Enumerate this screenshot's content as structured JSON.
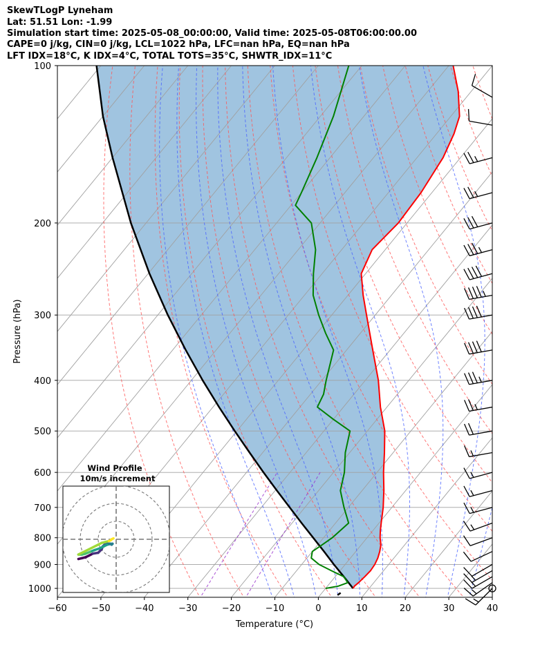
{
  "header": {
    "line1": "SkewTLogP Lyneham",
    "line2": "Lat: 51.51   Lon: -1.99",
    "line3": "Simulation start time: 2025-05-08_00:00:00, Valid time: 2025-05-08T06:00:00.00",
    "line4": "CAPE=0 j/kg, CIN=0 j/kg, LCL=1022 hPa, LFC=nan hPa, EQ=nan hPa",
    "line5": "LFT IDX=18°C, K IDX=4°C, TOTAL TOTS=35°C, SHWTR_IDX=11°C"
  },
  "chart_data": {
    "type": "skewt-logp",
    "xlabel": "Temperature (°C)",
    "ylabel": "Pressure (hPa)",
    "xlim": [
      -60,
      40
    ],
    "ylim": [
      1040,
      100
    ],
    "x_ticks": [
      -60,
      -50,
      -40,
      -30,
      -20,
      -10,
      0,
      10,
      20,
      30,
      40
    ],
    "x_tick_labels": [
      "−60",
      "−50",
      "−40",
      "−30",
      "−20",
      "−10",
      "0",
      "10",
      "20",
      "30",
      "40"
    ],
    "y_ticks": [
      1000,
      900,
      800,
      700,
      600,
      500,
      400,
      300,
      200,
      100
    ],
    "y_tick_labels": [
      "1000",
      "900",
      "800",
      "700",
      "600",
      "500",
      "400",
      "300",
      "200",
      "100"
    ],
    "grid": true,
    "colors": {
      "temperature": "#ff0000",
      "dewpoint": "#008000",
      "parcel": "#000000",
      "shading": "#a0c4e0",
      "dry_adiabats": "#ff5555",
      "moist_adiabats": "#4a63ff",
      "mixing_ratio": "#9933cc",
      "isotherms": "#a0a0a0"
    },
    "temperature": [
      {
        "p": 1000,
        "t": 6.3
      },
      {
        "p": 990,
        "t": 6.2
      },
      {
        "p": 975,
        "t": 6.5
      },
      {
        "p": 950,
        "t": 6.8
      },
      {
        "p": 925,
        "t": 7.0
      },
      {
        "p": 900,
        "t": 6.8
      },
      {
        "p": 875,
        "t": 6.3
      },
      {
        "p": 850,
        "t": 5.5
      },
      {
        "p": 825,
        "t": 4.5
      },
      {
        "p": 800,
        "t": 3.0
      },
      {
        "p": 775,
        "t": 1.7
      },
      {
        "p": 750,
        "t": 0.5
      },
      {
        "p": 700,
        "t": -2.0
      },
      {
        "p": 650,
        "t": -5.0
      },
      {
        "p": 600,
        "t": -8.5
      },
      {
        "p": 550,
        "t": -12.0
      },
      {
        "p": 500,
        "t": -16.0
      },
      {
        "p": 450,
        "t": -21.5
      },
      {
        "p": 400,
        "t": -27.0
      },
      {
        "p": 350,
        "t": -34.0
      },
      {
        "p": 300,
        "t": -42.0
      },
      {
        "p": 275,
        "t": -46.5
      },
      {
        "p": 250,
        "t": -51.0
      },
      {
        "p": 225,
        "t": -53.0
      },
      {
        "p": 200,
        "t": -52.0
      },
      {
        "p": 175,
        "t": -52.5
      },
      {
        "p": 150,
        "t": -54.0
      },
      {
        "p": 135,
        "t": -56.0
      },
      {
        "p": 125,
        "t": -58.0
      },
      {
        "p": 112,
        "t": -63.0
      },
      {
        "p": 100,
        "t": -69.0
      }
    ],
    "dewpoint": [
      {
        "p": 1000,
        "t": 0.0
      },
      {
        "p": 990,
        "t": 2.5
      },
      {
        "p": 975,
        "t": 4.0
      },
      {
        "p": 950,
        "t": 2.0
      },
      {
        "p": 925,
        "t": -2.0
      },
      {
        "p": 900,
        "t": -6.0
      },
      {
        "p": 875,
        "t": -9.0
      },
      {
        "p": 850,
        "t": -10.0
      },
      {
        "p": 825,
        "t": -9.0
      },
      {
        "p": 800,
        "t": -8.0
      },
      {
        "p": 750,
        "t": -7.0
      },
      {
        "p": 700,
        "t": -11.0
      },
      {
        "p": 650,
        "t": -15.0
      },
      {
        "p": 600,
        "t": -17.5
      },
      {
        "p": 550,
        "t": -21.0
      },
      {
        "p": 500,
        "t": -24.0
      },
      {
        "p": 475,
        "t": -30.0
      },
      {
        "p": 450,
        "t": -36.0
      },
      {
        "p": 425,
        "t": -37.0
      },
      {
        "p": 400,
        "t": -39.0
      },
      {
        "p": 350,
        "t": -43.0
      },
      {
        "p": 325,
        "t": -48.0
      },
      {
        "p": 300,
        "t": -53.0
      },
      {
        "p": 275,
        "t": -58.0
      },
      {
        "p": 250,
        "t": -62.0
      },
      {
        "p": 225,
        "t": -66.0
      },
      {
        "p": 200,
        "t": -72.0
      },
      {
        "p": 185,
        "t": -79.0
      },
      {
        "p": 175,
        "t": -80.0
      },
      {
        "p": 150,
        "t": -83.0
      },
      {
        "p": 125,
        "t": -87.0
      },
      {
        "p": 100,
        "t": -93.0
      }
    ],
    "parcel": [
      {
        "p": 1000,
        "t": 6.3
      },
      {
        "p": 950,
        "t": 2.0
      },
      {
        "p": 900,
        "t": -2.6
      },
      {
        "p": 850,
        "t": -7.3
      },
      {
        "p": 800,
        "t": -12.4
      },
      {
        "p": 750,
        "t": -17.8
      },
      {
        "p": 700,
        "t": -23.5
      },
      {
        "p": 650,
        "t": -29.6
      },
      {
        "p": 600,
        "t": -36.1
      },
      {
        "p": 550,
        "t": -43.0
      },
      {
        "p": 500,
        "t": -50.5
      },
      {
        "p": 450,
        "t": -58.6
      },
      {
        "p": 400,
        "t": -67.4
      },
      {
        "p": 350,
        "t": -77.0
      },
      {
        "p": 300,
        "t": -87.7
      },
      {
        "p": 250,
        "t": -99.7
      },
      {
        "p": 200,
        "t": -113.5
      },
      {
        "p": 150,
        "t": -130.0
      },
      {
        "p": 125,
        "t": -140.0
      },
      {
        "p": 100,
        "t": -151.0
      }
    ],
    "wind_barbs": [
      {
        "p": 1000,
        "speed_kt": 15,
        "dir": 225
      },
      {
        "p": 975,
        "speed_kt": 15,
        "dir": 235
      },
      {
        "p": 950,
        "speed_kt": 15,
        "dir": 240
      },
      {
        "p": 925,
        "speed_kt": 15,
        "dir": 240
      },
      {
        "p": 900,
        "speed_kt": 10,
        "dir": 240
      },
      {
        "p": 850,
        "speed_kt": 10,
        "dir": 245
      },
      {
        "p": 800,
        "speed_kt": 10,
        "dir": 250
      },
      {
        "p": 750,
        "speed_kt": 15,
        "dir": 250
      },
      {
        "p": 700,
        "speed_kt": 15,
        "dir": 255
      },
      {
        "p": 650,
        "speed_kt": 15,
        "dir": 255
      },
      {
        "p": 600,
        "speed_kt": 15,
        "dir": 255
      },
      {
        "p": 550,
        "speed_kt": 15,
        "dir": 260
      },
      {
        "p": 500,
        "speed_kt": 20,
        "dir": 260
      },
      {
        "p": 450,
        "speed_kt": 25,
        "dir": 260
      },
      {
        "p": 400,
        "speed_kt": 35,
        "dir": 260
      },
      {
        "p": 350,
        "speed_kt": 40,
        "dir": 260
      },
      {
        "p": 300,
        "speed_kt": 40,
        "dir": 260
      },
      {
        "p": 275,
        "speed_kt": 45,
        "dir": 260
      },
      {
        "p": 250,
        "speed_kt": 40,
        "dir": 255
      },
      {
        "p": 225,
        "speed_kt": 35,
        "dir": 255
      },
      {
        "p": 200,
        "speed_kt": 30,
        "dir": 255
      },
      {
        "p": 175,
        "speed_kt": 25,
        "dir": 255
      },
      {
        "p": 150,
        "speed_kt": 25,
        "dir": 255
      },
      {
        "p": 130,
        "speed_kt": 10,
        "dir": 280
      },
      {
        "p": 115,
        "speed_kt": 10,
        "dir": 300
      }
    ],
    "hodograph": {
      "title": "Wind Profile",
      "subtitle": "10m/s increment",
      "ring_increment_ms": 10,
      "rings": 3,
      "points_uv": [
        [
          -21,
          -11
        ],
        [
          -19,
          -10.5
        ],
        [
          -17,
          -10
        ],
        [
          -15,
          -9
        ],
        [
          -13,
          -8
        ],
        [
          -10,
          -7.5
        ],
        [
          -9,
          -6.5
        ],
        [
          -8,
          -5.5
        ],
        [
          -7.5,
          -4
        ],
        [
          -6.5,
          -3
        ],
        [
          -5,
          -2.5
        ],
        [
          -3.5,
          -2.5
        ],
        [
          -2.5,
          -3
        ],
        [
          -2,
          -2.5
        ],
        [
          -3,
          -2.5
        ],
        [
          -5,
          -3
        ],
        [
          -7,
          -4
        ],
        [
          -9,
          -5
        ],
        [
          -12,
          -6
        ],
        [
          -14.5,
          -7
        ],
        [
          -17,
          -8
        ],
        [
          -19,
          -8.5
        ],
        [
          -21,
          -8.5
        ],
        [
          -10,
          -3
        ],
        [
          -8,
          -2
        ],
        [
          -6,
          -1.5
        ],
        [
          -4,
          -1
        ],
        [
          -3,
          -0.5
        ],
        [
          -2.5,
          0
        ],
        [
          -1.5,
          0.5
        ]
      ]
    }
  }
}
